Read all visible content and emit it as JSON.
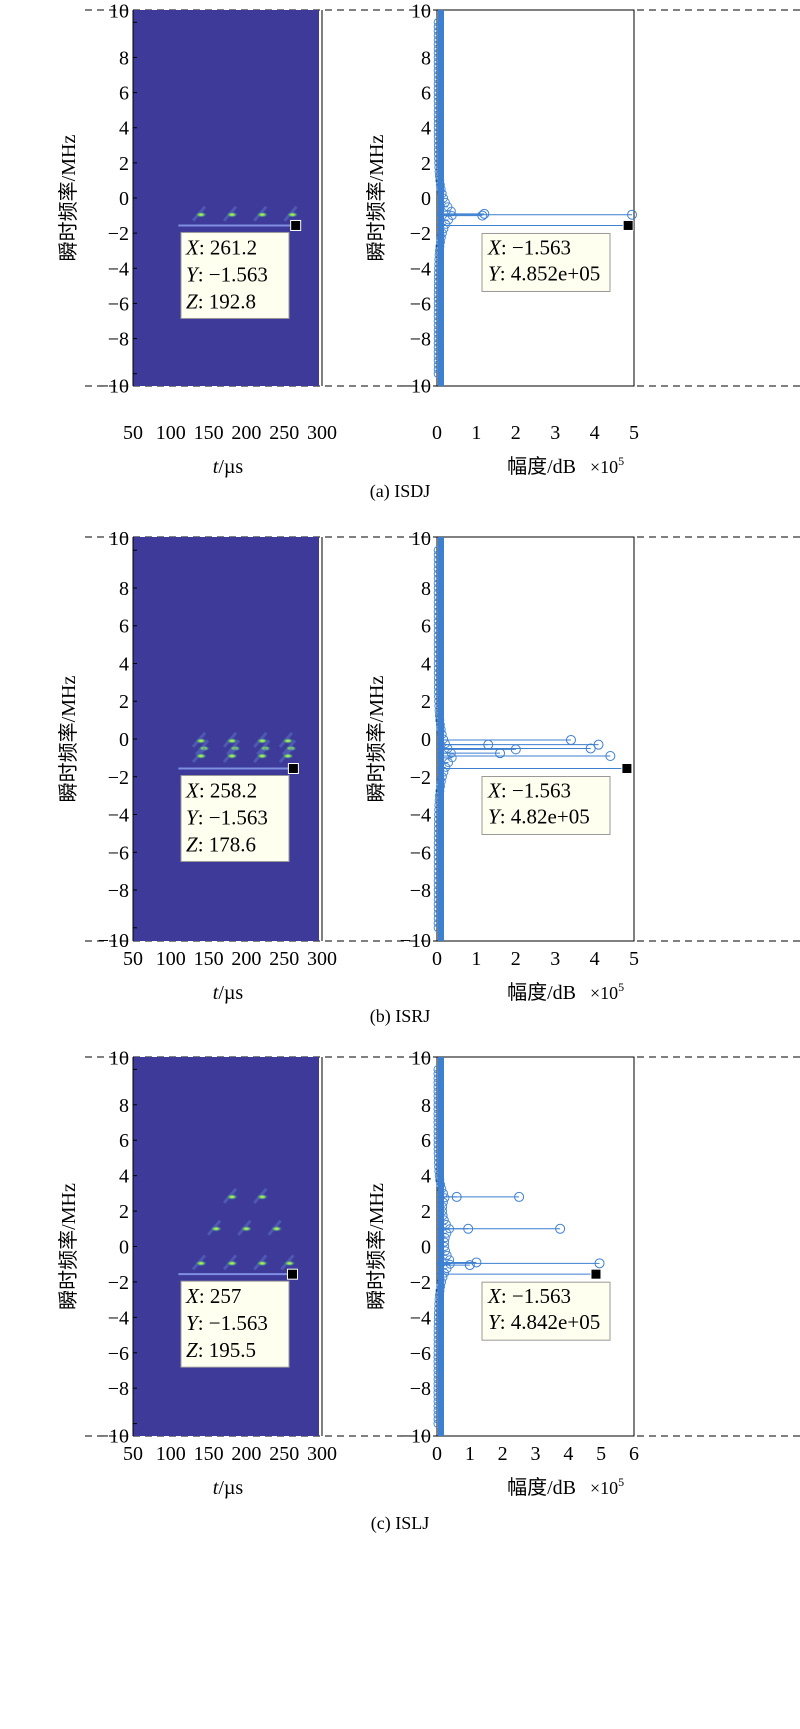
{
  "chart_data": [
    {
      "type": "heatmap+stem",
      "caption": "(a) ISDJ",
      "left": {
        "xlabel_italic": "t",
        "xlabel_unit": "/µs",
        "ylabel": "瞬时频率/MHz",
        "xlim": [
          50,
          300
        ],
        "ylim": [
          -10,
          10
        ],
        "xticks": [
          "50",
          "100",
          "150",
          "200",
          "250",
          "300"
        ],
        "yticks": [
          "10",
          "8",
          "6",
          "4",
          "2",
          "0",
          "−2",
          "−4",
          "−6",
          "−8",
          "−10"
        ],
        "spots": [
          [
            140,
            -0.95
          ],
          [
            181,
            -0.95
          ],
          [
            221,
            -0.95
          ],
          [
            261,
            -0.95
          ]
        ],
        "line": {
          "t": [
            110,
            261.2
          ],
          "f": -1.563
        },
        "datatip": {
          "X": "261.2",
          "Y": "−1.563",
          "Z": "192.8",
          "point": [
            261.2,
            -1.563
          ]
        }
      },
      "right": {
        "xlabel": "幅度/dB",
        "xscale": "×10",
        "xscale_exp": "5",
        "ylabel": "瞬时频率/MHz",
        "xlim": [
          0,
          5
        ],
        "ylim": [
          -10,
          10
        ],
        "xticks": [
          "0",
          "1",
          "2",
          "3",
          "4",
          "5"
        ],
        "yticks": [
          "10",
          "8",
          "6",
          "4",
          "2",
          "0",
          "−2",
          "−4",
          "−6",
          "−8",
          "−10"
        ],
        "peaks": [
          [
            4.95,
            -0.95
          ],
          [
            1.2,
            -0.9
          ],
          [
            1.15,
            -1.0
          ]
        ],
        "datatip": {
          "X": "−1.563",
          "Y": "4.852e+05",
          "point": [
            4.852,
            -1.563
          ]
        }
      }
    },
    {
      "type": "heatmap+stem",
      "caption": "(b) ISRJ",
      "left": {
        "xlabel_italic": "t",
        "xlabel_unit": "/µs",
        "ylabel": "瞬时频率/MHz",
        "xlim": [
          50,
          300
        ],
        "ylim": [
          -10,
          10
        ],
        "xticks": [
          "50",
          "100",
          "150",
          "200",
          "250",
          "300"
        ],
        "yticks": [
          "10",
          "8",
          "6",
          "4",
          "2",
          "0",
          "−2",
          "−4",
          "−6",
          "−8",
          "−10"
        ],
        "spots": [
          [
            140,
            -0.1
          ],
          [
            144,
            -0.5
          ],
          [
            140,
            -0.9
          ],
          [
            181,
            -0.1
          ],
          [
            185,
            -0.5
          ],
          [
            181,
            -0.9
          ],
          [
            221,
            -0.1
          ],
          [
            225,
            -0.5
          ],
          [
            221,
            -0.9
          ],
          [
            255,
            -0.1
          ],
          [
            259,
            -0.5
          ],
          [
            255,
            -0.9
          ]
        ],
        "line": {
          "t": [
            110,
            258.2
          ],
          "f": -1.563
        },
        "datatip": {
          "X": "258.2",
          "Y": "−1.563",
          "Z": "178.6",
          "point": [
            258.2,
            -1.563
          ]
        }
      },
      "right": {
        "xlabel": "幅度/dB",
        "xscale": "×10",
        "xscale_exp": "5",
        "ylabel": "瞬时频率/MHz",
        "xlim": [
          0,
          5
        ],
        "ylim": [
          -10,
          10
        ],
        "xticks": [
          "0",
          "1",
          "2",
          "3",
          "4",
          "5"
        ],
        "yticks": [
          "10",
          "8",
          "6",
          "4",
          "2",
          "0",
          "−2",
          "−4",
          "−6",
          "−8",
          "−10"
        ],
        "peaks": [
          [
            3.4,
            -0.05
          ],
          [
            4.1,
            -0.3
          ],
          [
            3.9,
            -0.5
          ],
          [
            2.0,
            -0.55
          ],
          [
            4.4,
            -0.9
          ],
          [
            1.6,
            -0.75
          ],
          [
            1.3,
            -0.3
          ]
        ],
        "datatip": {
          "X": "−1.563",
          "Y": "4.82e+05",
          "point": [
            4.82,
            -1.563
          ]
        }
      }
    },
    {
      "type": "heatmap+stem",
      "caption": "(c) ISLJ",
      "left": {
        "xlabel_italic": "t",
        "xlabel_unit": "/µs",
        "ylabel": "瞬时频率/MHz",
        "xlim": [
          50,
          300
        ],
        "ylim": [
          -10,
          10
        ],
        "xticks": [
          "50",
          "100",
          "150",
          "200",
          "250",
          "300"
        ],
        "yticks": [
          "10",
          "8",
          "6",
          "4",
          "2",
          "0",
          "−2",
          "−4",
          "−6",
          "−8",
          "−10"
        ],
        "spots": [
          [
            181,
            2.8
          ],
          [
            221,
            2.8
          ],
          [
            160,
            1.0
          ],
          [
            200,
            1.0
          ],
          [
            240,
            1.0
          ],
          [
            140,
            -0.95
          ],
          [
            181,
            -0.95
          ],
          [
            221,
            -0.95
          ],
          [
            257,
            -0.95
          ]
        ],
        "line": {
          "t": [
            110,
            257
          ],
          "f": -1.563
        },
        "datatip": {
          "X": "257",
          "Y": "−1.563",
          "Z": "195.5",
          "point": [
            257,
            -1.563
          ]
        }
      },
      "right": {
        "xlabel": "幅度/dB",
        "xscale": "×10",
        "xscale_exp": "5",
        "ylabel": "瞬时频率/MHz",
        "xlim": [
          0,
          6
        ],
        "ylim": [
          -10,
          10
        ],
        "xticks": [
          "0",
          "1",
          "2",
          "3",
          "4",
          "5",
          "6"
        ],
        "yticks": [
          "10",
          "8",
          "6",
          "4",
          "2",
          "0",
          "−2",
          "−4",
          "−6",
          "−8",
          "−10"
        ],
        "peaks": [
          [
            2.5,
            2.8
          ],
          [
            0.6,
            2.8
          ],
          [
            3.75,
            1.0
          ],
          [
            0.95,
            1.0
          ],
          [
            4.95,
            -0.95
          ],
          [
            1.2,
            -0.9
          ],
          [
            1.0,
            -1.05
          ]
        ],
        "datatip": {
          "X": "−1.563",
          "Y": "4.842e+05",
          "point": [
            4.842,
            -1.563
          ]
        }
      }
    }
  ]
}
